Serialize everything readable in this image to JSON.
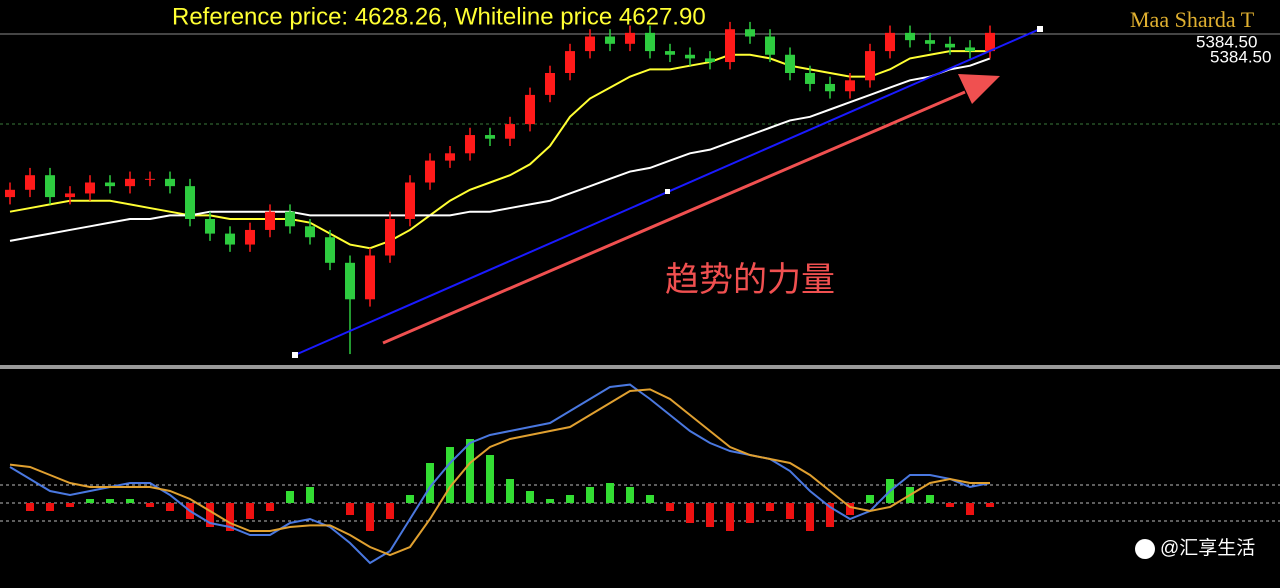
{
  "header": {
    "reference_text": "Reference price: 4628.26, Whiteline price 4627.90",
    "brand": "Maa Sharda T",
    "price_labels": [
      "5384.50",
      "5384.50"
    ],
    "annotation": "趋势的力量",
    "watermark": "@汇享生活"
  },
  "chart_data": [
    {
      "type": "candlestick",
      "ylim": [
        0,
        100
      ],
      "up_color": "#ff1a1a",
      "down_color": "#2ecc40",
      "open": [
        46,
        48,
        52,
        46,
        47,
        50,
        49,
        51,
        51,
        49,
        40,
        36,
        33,
        37,
        42,
        38,
        35,
        28,
        18,
        30,
        40,
        50,
        56,
        58,
        63,
        62,
        66,
        74,
        80,
        86,
        90,
        88,
        91,
        86,
        85,
        84,
        83,
        92,
        90,
        85,
        80,
        77,
        75,
        78,
        86,
        91,
        89,
        88,
        87,
        86
      ],
      "high": [
        50,
        54,
        54,
        49,
        52,
        52,
        53,
        53,
        53,
        51,
        42,
        38,
        39,
        44,
        44,
        40,
        37,
        30,
        32,
        42,
        52,
        58,
        60,
        65,
        65,
        68,
        76,
        82,
        88,
        92,
        92,
        93,
        93,
        88,
        87,
        86,
        94,
        94,
        92,
        87,
        82,
        79,
        80,
        88,
        93,
        93,
        91,
        90,
        89,
        93
      ],
      "low": [
        44,
        46,
        44,
        44,
        45,
        47,
        47,
        49,
        47,
        38,
        34,
        31,
        31,
        35,
        36,
        33,
        26,
        3,
        16,
        28,
        38,
        48,
        54,
        56,
        60,
        60,
        64,
        72,
        78,
        84,
        86,
        86,
        84,
        83,
        82,
        81,
        81,
        88,
        83,
        78,
        75,
        73,
        73,
        76,
        84,
        87,
        86,
        85,
        84,
        84
      ],
      "close": [
        48,
        52,
        46,
        47,
        50,
        49,
        51,
        51,
        49,
        40,
        36,
        33,
        37,
        42,
        38,
        35,
        28,
        18,
        30,
        40,
        50,
        56,
        58,
        63,
        62,
        66,
        74,
        80,
        86,
        90,
        88,
        91,
        86,
        85,
        84,
        83,
        92,
        90,
        85,
        80,
        77,
        75,
        78,
        86,
        91,
        89,
        88,
        87,
        86,
        91
      ],
      "series": [
        {
          "color": "#ffff33",
          "values": [
            42,
            43,
            44,
            45,
            45,
            45,
            44,
            43,
            42,
            41,
            41,
            40,
            40,
            40,
            40,
            39,
            36,
            33,
            32,
            34,
            37,
            41,
            45,
            48,
            50,
            52,
            55,
            60,
            68,
            73,
            76,
            79,
            81,
            81,
            82,
            83,
            85,
            85,
            84,
            82,
            81,
            80,
            79,
            79,
            81,
            84,
            85,
            86,
            86,
            86
          ]
        },
        {
          "color": "#ffffff",
          "values": [
            34,
            35,
            36,
            37,
            38,
            39,
            40,
            40,
            41,
            41,
            42,
            42,
            42,
            42,
            42,
            41,
            41,
            41,
            41,
            41,
            41,
            41,
            41,
            42,
            42,
            43,
            44,
            45,
            47,
            49,
            51,
            53,
            54,
            56,
            58,
            59,
            61,
            63,
            65,
            67,
            68,
            70,
            72,
            74,
            76,
            78,
            79,
            81,
            82,
            84
          ]
        }
      ]
    },
    {
      "type": "macd",
      "ylim": [
        -10,
        15
      ],
      "levels": [
        2.25,
        0,
        -2.25
      ],
      "up_color": "#33dd33",
      "down_color": "#ee1111",
      "values": [
        0,
        -1,
        -1,
        -0.5,
        0.5,
        0.5,
        0.5,
        -0.5,
        -1,
        -2,
        -3,
        -3.5,
        -2,
        -1,
        1.5,
        2,
        0,
        -1.5,
        -3.5,
        -2,
        1,
        5,
        7,
        8,
        6,
        3,
        1.5,
        0.5,
        1,
        2,
        2.5,
        2,
        1,
        -1,
        -2.5,
        -3,
        -3.5,
        -2.5,
        -1,
        -2,
        -3.5,
        -3,
        -1.5,
        1,
        3,
        2,
        1,
        -0.5,
        -1.5,
        -0.5
      ],
      "series": [
        {
          "color": "#4a78e0",
          "values": [
            4.5,
            3,
            1.5,
            1,
            1.5,
            2,
            2.5,
            2.5,
            1,
            -1,
            -2.5,
            -3,
            -4,
            -4,
            -2.5,
            -2,
            -3,
            -5,
            -7.5,
            -6,
            -2,
            2,
            5,
            7.5,
            8.5,
            9,
            9.5,
            10,
            11.5,
            13,
            14.5,
            14.8,
            13,
            11,
            9,
            7.5,
            6.5,
            6,
            5.5,
            4,
            1.5,
            -0.5,
            -2,
            -1,
            1.5,
            3.5,
            3.5,
            3,
            2,
            2.5
          ]
        },
        {
          "color": "#e0a030",
          "values": [
            4.8,
            4.5,
            3.5,
            2.5,
            2,
            2,
            2,
            2,
            1.5,
            0.5,
            -1,
            -2.5,
            -3.5,
            -3.5,
            -3,
            -2.8,
            -2.8,
            -4,
            -5.5,
            -6.5,
            -5.5,
            -2,
            2,
            5,
            7,
            8,
            8.5,
            9,
            9.5,
            11,
            12.5,
            14,
            14.2,
            13,
            11,
            9,
            7,
            6,
            5.5,
            5,
            3.5,
            1.5,
            -0.5,
            -1,
            -0.5,
            1,
            2.5,
            3,
            2.5,
            2.5
          ]
        }
      ]
    }
  ]
}
